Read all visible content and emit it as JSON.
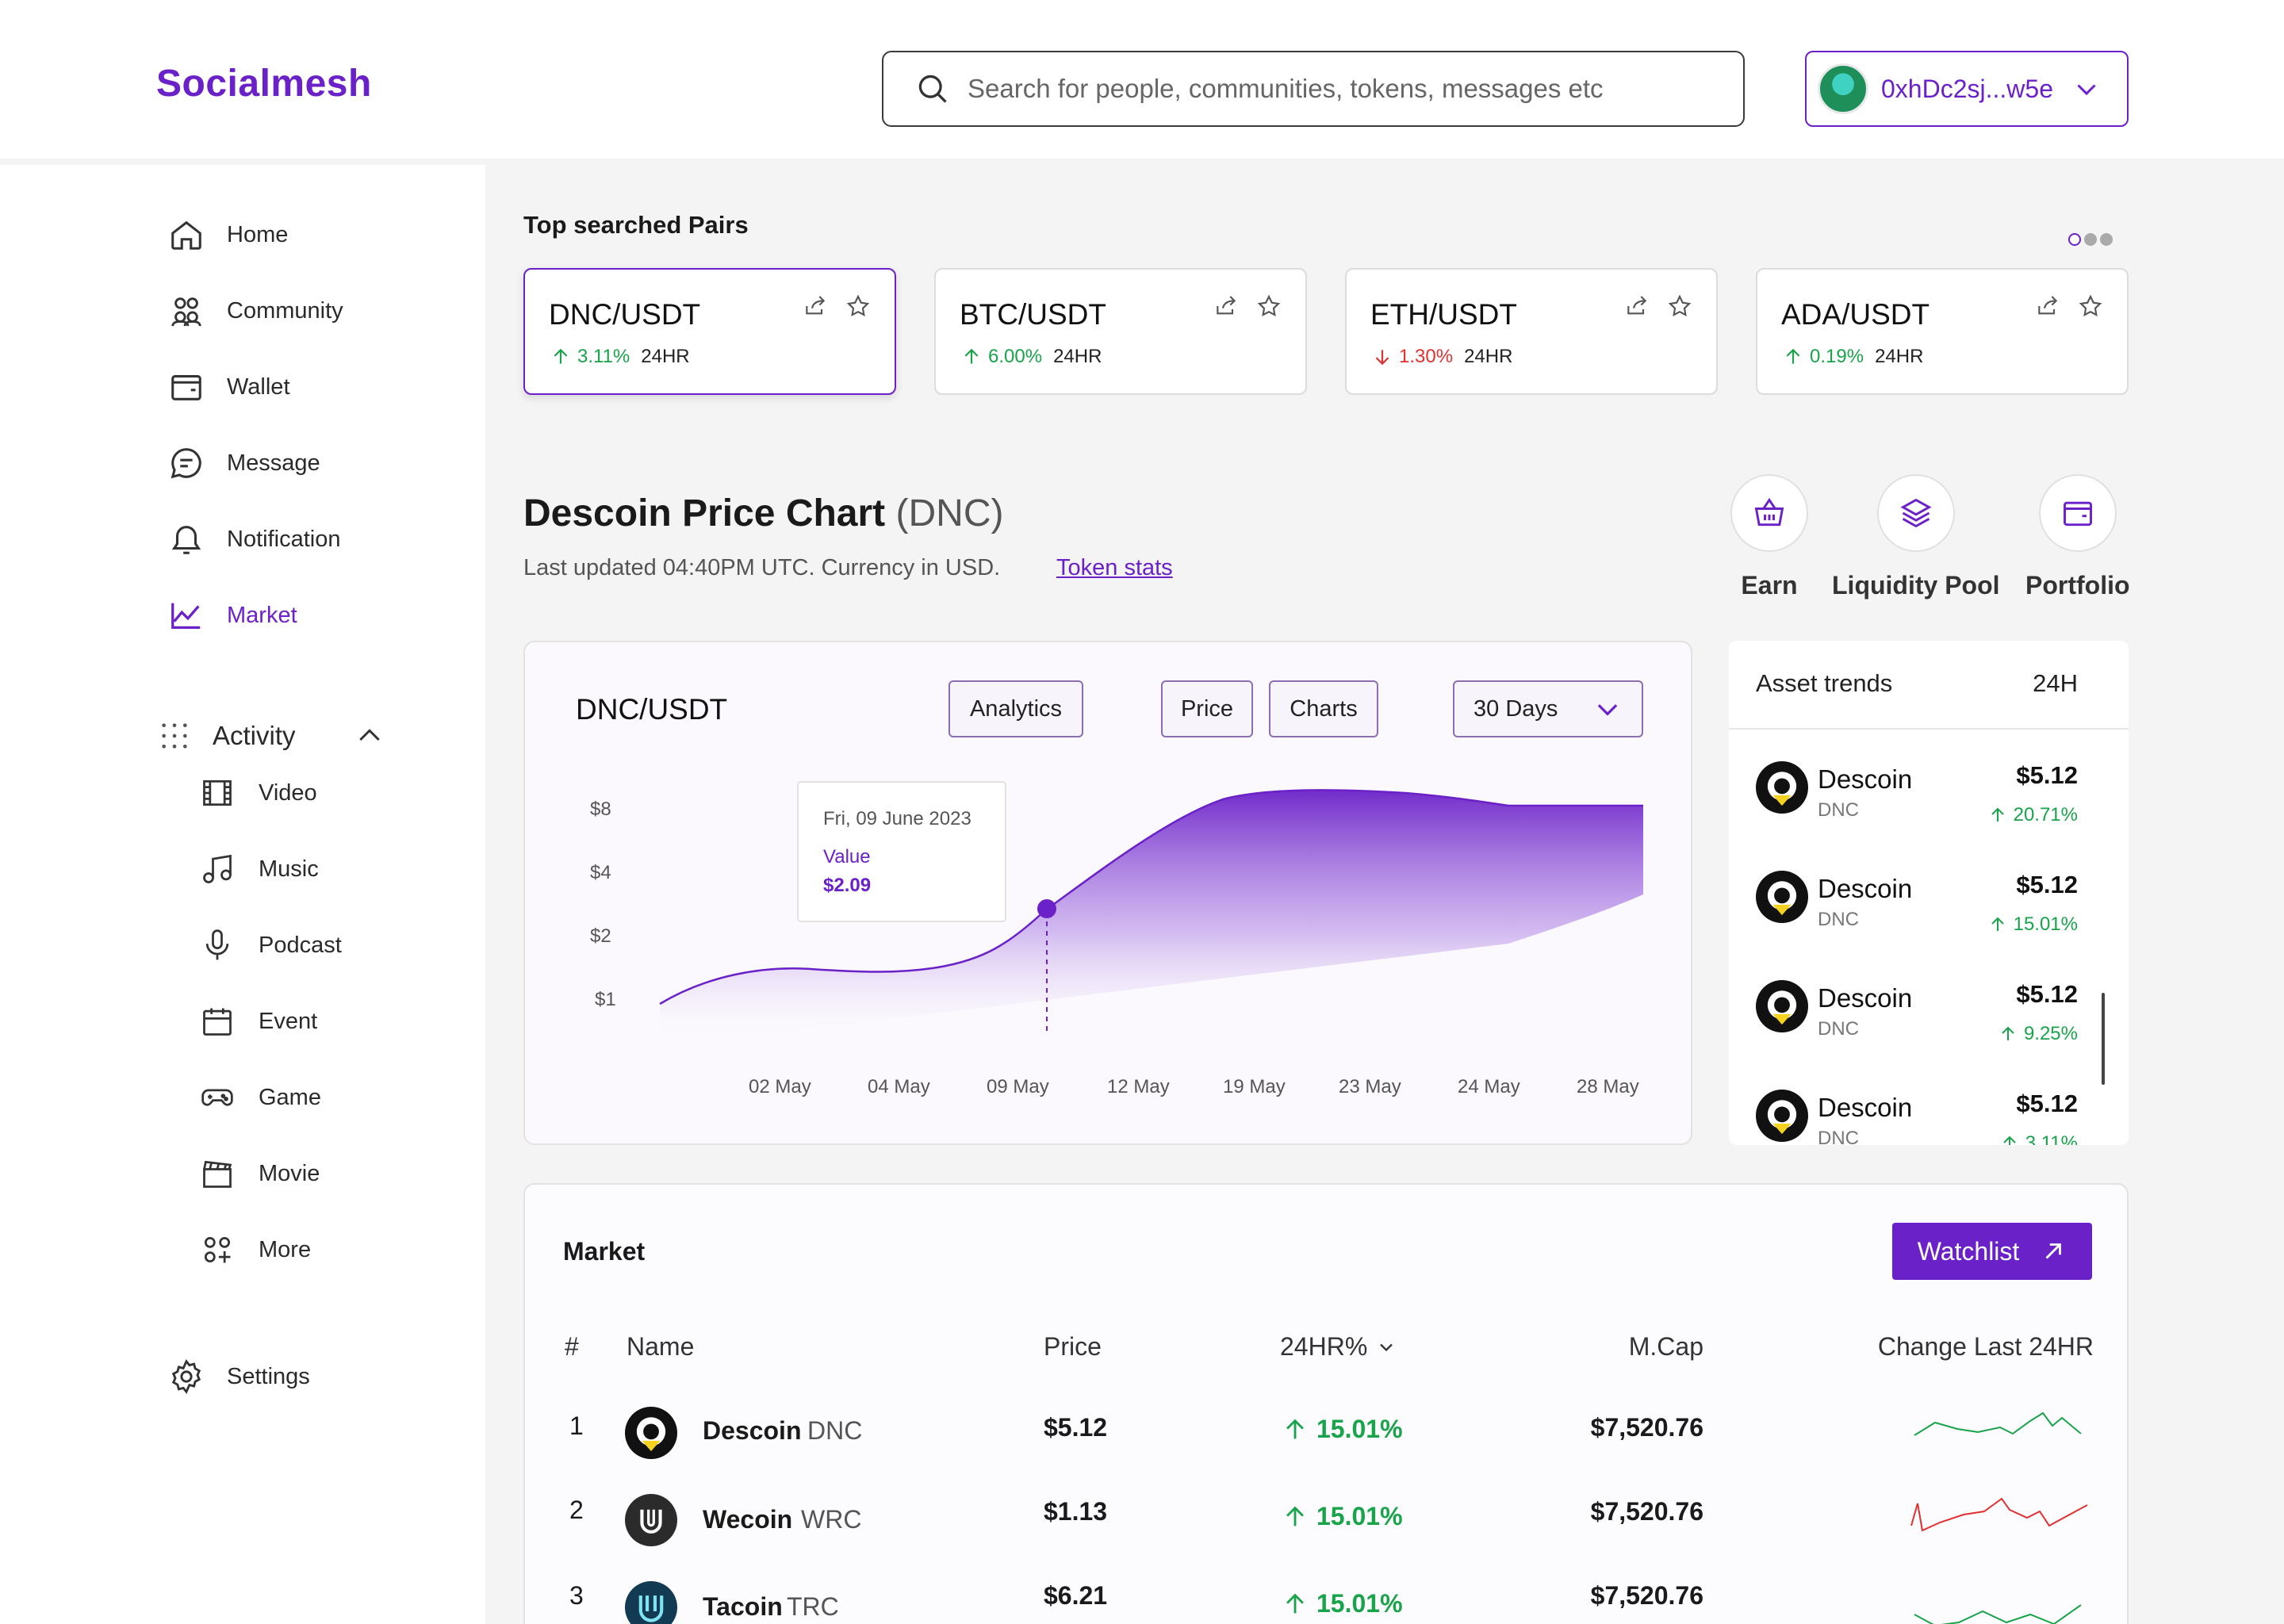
{
  "app": {
    "logo": "Socialmesh",
    "search_placeholder": "Search for people, communities, tokens, messages etc",
    "wallet_address": "0xhDc2sj...w5e"
  },
  "sidebar": {
    "items": [
      {
        "label": "Home",
        "icon": "home-icon"
      },
      {
        "label": "Community",
        "icon": "community-icon"
      },
      {
        "label": "Wallet",
        "icon": "wallet-icon"
      },
      {
        "label": "Message",
        "icon": "message-icon"
      },
      {
        "label": "Notification",
        "icon": "bell-icon"
      },
      {
        "label": "Market",
        "icon": "chart-line-icon",
        "active": true
      }
    ],
    "activity": {
      "label": "Activity",
      "items": [
        {
          "label": "Video",
          "icon": "film-icon"
        },
        {
          "label": "Music",
          "icon": "music-icon"
        },
        {
          "label": "Podcast",
          "icon": "mic-icon"
        },
        {
          "label": "Event",
          "icon": "calendar-icon"
        },
        {
          "label": "Game",
          "icon": "gamepad-icon"
        },
        {
          "label": "Movie",
          "icon": "clapper-icon"
        },
        {
          "label": "More",
          "icon": "more-icon"
        }
      ]
    },
    "settings": "Settings"
  },
  "top_pairs": {
    "title": "Top searched Pairs",
    "pairs": [
      {
        "name": "DNC/USDT",
        "change": "3.11%",
        "dir": "up",
        "period": "24HR"
      },
      {
        "name": "BTC/USDT",
        "change": "6.00%",
        "dir": "up",
        "period": "24HR"
      },
      {
        "name": "ETH/USDT",
        "change": "1.30%",
        "dir": "down",
        "period": "24HR"
      },
      {
        "name": "ADA/USDT",
        "change": "0.19%",
        "dir": "up",
        "period": "24HR"
      }
    ]
  },
  "price_chart": {
    "title": "Descoin Price Chart",
    "symbol": "(DNC)",
    "updated": "Last updated 04:40PM UTC. Currency in USD.",
    "token_stats": "Token stats",
    "pair": "DNC/USDT",
    "buttons": {
      "analytics": "Analytics",
      "price": "Price",
      "charts": "Charts",
      "range": "30 Days"
    },
    "tooltip": {
      "date": "Fri, 09 June 2023",
      "label": "Value",
      "value": "$2.09"
    }
  },
  "quick_actions": [
    {
      "label": "Earn",
      "icon": "basket-icon"
    },
    {
      "label": "Liquidity Pool",
      "icon": "layers-icon"
    },
    {
      "label": "Portfolio",
      "icon": "wallet-icon"
    }
  ],
  "asset_trends": {
    "title": "Asset trends",
    "period": "24H",
    "rows": [
      {
        "name": "Descoin",
        "ticker": "DNC",
        "price": "$5.12",
        "change": "20.71%"
      },
      {
        "name": "Descoin",
        "ticker": "DNC",
        "price": "$5.12",
        "change": "15.01%"
      },
      {
        "name": "Descoin",
        "ticker": "DNC",
        "price": "$5.12",
        "change": "9.25%"
      },
      {
        "name": "Descoin",
        "ticker": "DNC",
        "price": "$5.12",
        "change": "3.11%"
      }
    ]
  },
  "market": {
    "title": "Market",
    "watchlist": "Watchlist",
    "headers": {
      "num": "#",
      "name": "Name",
      "price": "Price",
      "change": "24HR%",
      "mcap": "M.Cap",
      "last": "Change Last 24HR"
    },
    "rows": [
      {
        "num": "1",
        "name": "Descoin",
        "ticker": "DNC",
        "price": "$5.12",
        "change": "15.01%",
        "mcap": "$7,520.76",
        "spark": "green"
      },
      {
        "num": "2",
        "name": "Wecoin",
        "ticker": "WRC",
        "price": "$1.13",
        "change": "15.01%",
        "mcap": "$7,520.76",
        "spark": "red"
      },
      {
        "num": "3",
        "name": "Tacoin",
        "ticker": "TRC",
        "price": "$6.21",
        "change": "15.01%",
        "mcap": "$7,520.76",
        "spark": "green"
      }
    ]
  },
  "chart_data": {
    "type": "area",
    "x": [
      "02 May",
      "04 May",
      "09 May",
      "12 May",
      "19 May",
      "23 May",
      "24 May",
      "28 May"
    ],
    "y_ticks": [
      "$8",
      "$4",
      "$2",
      "$1"
    ],
    "highlight": {
      "date": "Fri, 09 June 2023",
      "value": "$2.09"
    },
    "colors": {
      "line": "#6b21c8",
      "fill": "#7c3aed"
    }
  },
  "colors": {
    "accent": "#6b21c8",
    "up": "#19a34a",
    "down": "#e03131"
  }
}
